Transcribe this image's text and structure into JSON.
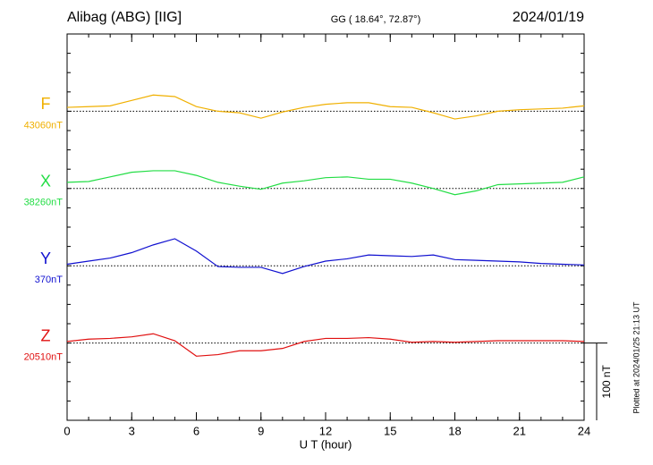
{
  "chart_data": {
    "type": "line",
    "title": "Alibag (ABG)  [IIG]",
    "subtitle": "GG ( 18.64°,  72.87°)",
    "date": "2024/01/19",
    "xlabel": "U T (hour)",
    "plotted_note": "Plotted at 2024/01/25 21:13 UT",
    "scale_bar": {
      "value": 100,
      "label": "100 nT"
    },
    "xlim": [
      0,
      24
    ],
    "xticks": [
      0,
      3,
      6,
      9,
      12,
      15,
      18,
      21,
      24
    ],
    "x": [
      0,
      1,
      2,
      3,
      4,
      5,
      6,
      7,
      8,
      9,
      10,
      11,
      12,
      13,
      14,
      15,
      16,
      17,
      18,
      19,
      20,
      21,
      22,
      23,
      24
    ],
    "series": [
      {
        "name": "F",
        "color": "#f0b000",
        "baseline": {
          "value": 43060,
          "label": "43060nT"
        },
        "ylim": [
          42660,
          43160
        ],
        "values": [
          43065,
          43066,
          43067,
          43074,
          43081,
          43079,
          43066,
          43060,
          43058,
          43051,
          43059,
          43065,
          43069,
          43071,
          43071,
          43066,
          43065,
          43058,
          43050,
          43054,
          43060,
          43062,
          43063,
          43064,
          43067
        ]
      },
      {
        "name": "X",
        "color": "#22dd44",
        "baseline": {
          "value": 38260,
          "label": "38260nT"
        },
        "ylim": [
          37960,
          38460
        ],
        "values": [
          38268,
          38269,
          38275,
          38281,
          38283,
          38283,
          38277,
          38268,
          38263,
          38259,
          38267,
          38270,
          38274,
          38275,
          38272,
          38272,
          38267,
          38260,
          38252,
          38257,
          38265,
          38266,
          38267,
          38268,
          38275
        ]
      },
      {
        "name": "Y",
        "color": "#1010d0",
        "baseline": {
          "value": 370,
          "label": "370nT"
        },
        "ylim": [
          170,
          670
        ],
        "values": [
          372,
          376,
          380,
          387,
          397,
          405,
          389,
          369,
          368,
          368,
          360,
          369,
          376,
          379,
          384,
          383,
          382,
          384,
          378,
          377,
          376,
          375,
          373,
          372,
          371
        ]
      },
      {
        "name": "Z",
        "color": "#e01010",
        "baseline": {
          "value": 20510,
          "label": "20510nT"
        },
        "ylim": [
          20410,
          20910
        ],
        "values": [
          20512,
          20515,
          20516,
          20518,
          20522,
          20513,
          20493,
          20495,
          20500,
          20500,
          20503,
          20512,
          20516,
          20516,
          20517,
          20515,
          20511,
          20512,
          20511,
          20512,
          20513,
          20513,
          20513,
          20513,
          20512
        ]
      }
    ]
  }
}
